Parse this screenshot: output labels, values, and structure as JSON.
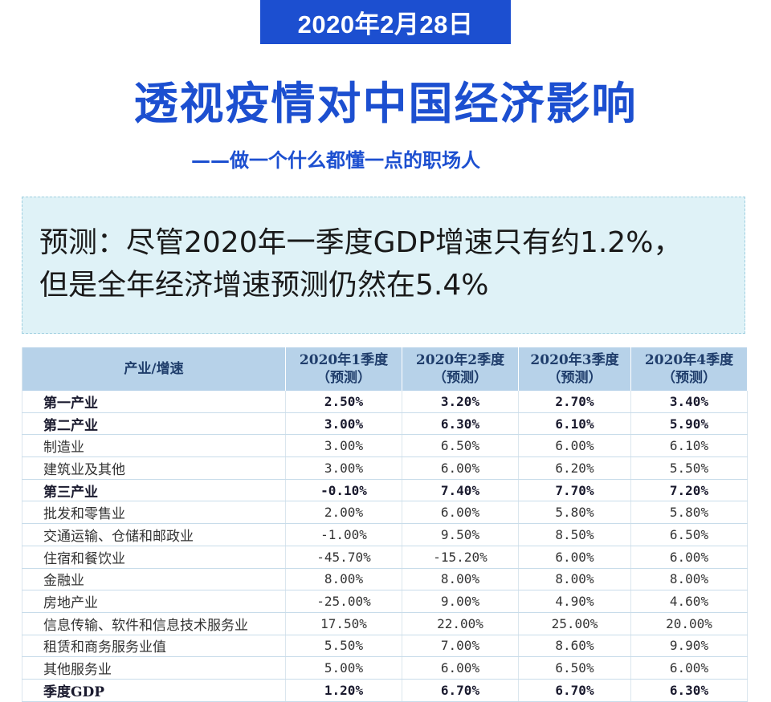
{
  "header": {
    "date": "2020年2月28日",
    "title": "透视疫情对中国经济影响",
    "subtitle": "——做一个什么都懂一点的职场人"
  },
  "forecast": {
    "line1": "预测：尽管2020年一季度GDP增速只有约1.2%，",
    "line2": "但是全年经济增速预测仍然在5.4%"
  },
  "table": {
    "headers": [
      {
        "line1": "产业/增速",
        "line2": ""
      },
      {
        "line1": "2020年1季度",
        "line2": "（预测）"
      },
      {
        "line1": "2020年2季度",
        "line2": "（预测）"
      },
      {
        "line1": "2020年3季度",
        "line2": "（预测）"
      },
      {
        "line1": "2020年4季度",
        "line2": "（预测）"
      }
    ],
    "rows": [
      {
        "label": "第一产业",
        "values": [
          "2.50%",
          "3.20%",
          "2.70%",
          "3.40%"
        ]
      },
      {
        "label": "第二产业",
        "values": [
          "3.00%",
          "6.30%",
          "6.10%",
          "5.90%"
        ]
      },
      {
        "label": "制造业",
        "values": [
          "3.00%",
          "6.50%",
          "6.00%",
          "6.10%"
        ]
      },
      {
        "label": "建筑业及其他",
        "values": [
          "3.00%",
          "6.00%",
          "6.20%",
          "5.50%"
        ]
      },
      {
        "label": "第三产业",
        "values": [
          "-0.10%",
          "7.40%",
          "7.70%",
          "7.20%"
        ]
      },
      {
        "label": "批发和零售业",
        "values": [
          "2.00%",
          "6.00%",
          "5.80%",
          "5.80%"
        ]
      },
      {
        "label": "交通运输、仓储和邮政业",
        "values": [
          "-1.00%",
          "9.50%",
          "8.50%",
          "6.50%"
        ]
      },
      {
        "label": "住宿和餐饮业",
        "values": [
          "-45.70%",
          "-15.20%",
          "6.00%",
          "6.00%"
        ]
      },
      {
        "label": "金融业",
        "values": [
          "8.00%",
          "8.00%",
          "8.00%",
          "8.00%"
        ]
      },
      {
        "label": "房地产业",
        "values": [
          "-25.00%",
          "9.00%",
          "4.90%",
          "4.60%"
        ]
      },
      {
        "label": "信息传输、软件和信息技术服务业",
        "values": [
          "17.50%",
          "22.00%",
          "25.00%",
          "20.00%"
        ]
      },
      {
        "label": "租赁和商务服务业值",
        "values": [
          "5.50%",
          "7.00%",
          "8.60%",
          "9.90%"
        ]
      },
      {
        "label": "其他服务业",
        "values": [
          "5.00%",
          "6.00%",
          "6.50%",
          "6.00%"
        ]
      },
      {
        "label": "季度GDP",
        "values": [
          "1.20%",
          "6.70%",
          "6.70%",
          "6.30%"
        ]
      }
    ]
  }
}
